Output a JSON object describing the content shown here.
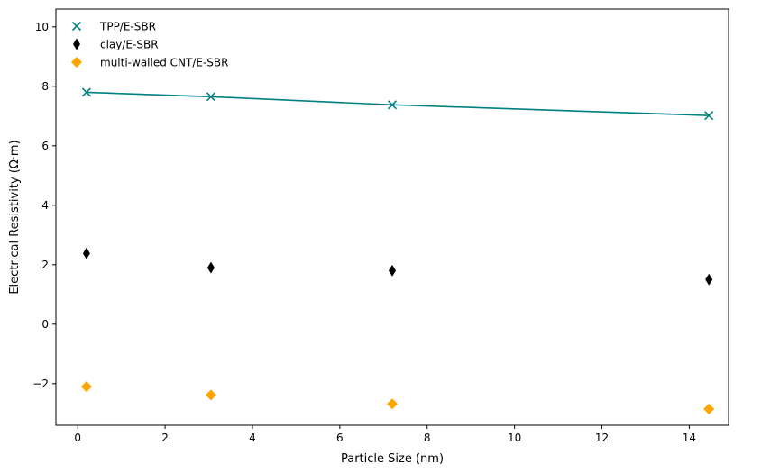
{
  "chart_data": {
    "type": "scatter",
    "title": "",
    "xlabel": "Particle Size (nm)",
    "ylabel": "Electrical Resistivity (Ω·m)",
    "xlim": [
      -0.5,
      14.9
    ],
    "ylim": [
      -3.4,
      10.6
    ],
    "xticks": [
      0,
      2,
      4,
      6,
      8,
      10,
      12,
      14
    ],
    "yticks": [
      -2,
      0,
      2,
      4,
      6,
      8,
      10
    ],
    "xtick_labels": [
      "0",
      "2",
      "4",
      "6",
      "8",
      "10",
      "12",
      "14"
    ],
    "ytick_labels": [
      "−2",
      "0",
      "2",
      "4",
      "6",
      "8",
      "10"
    ],
    "grid": false,
    "legend_position": "top-left",
    "series": [
      {
        "name": "TPP/E-SBR",
        "marker": "x",
        "color": "#008080",
        "x": [
          0.2,
          3.05,
          7.2,
          14.45
        ],
        "y": [
          7.8,
          7.65,
          7.38,
          7.02
        ],
        "fit_line": true
      },
      {
        "name": "clay/E-SBR",
        "marker": "thin-diamond",
        "color": "#000000",
        "x": [
          0.2,
          3.05,
          7.2,
          14.45
        ],
        "y": [
          2.38,
          1.9,
          1.8,
          1.5
        ],
        "fit_line": false
      },
      {
        "name": "multi-walled CNT/E-SBR",
        "marker": "diamond",
        "color": "#ffa500",
        "x": [
          0.2,
          3.05,
          7.2,
          14.45
        ],
        "y": [
          -2.1,
          -2.38,
          -2.68,
          -2.85
        ],
        "fit_line": false
      }
    ]
  }
}
